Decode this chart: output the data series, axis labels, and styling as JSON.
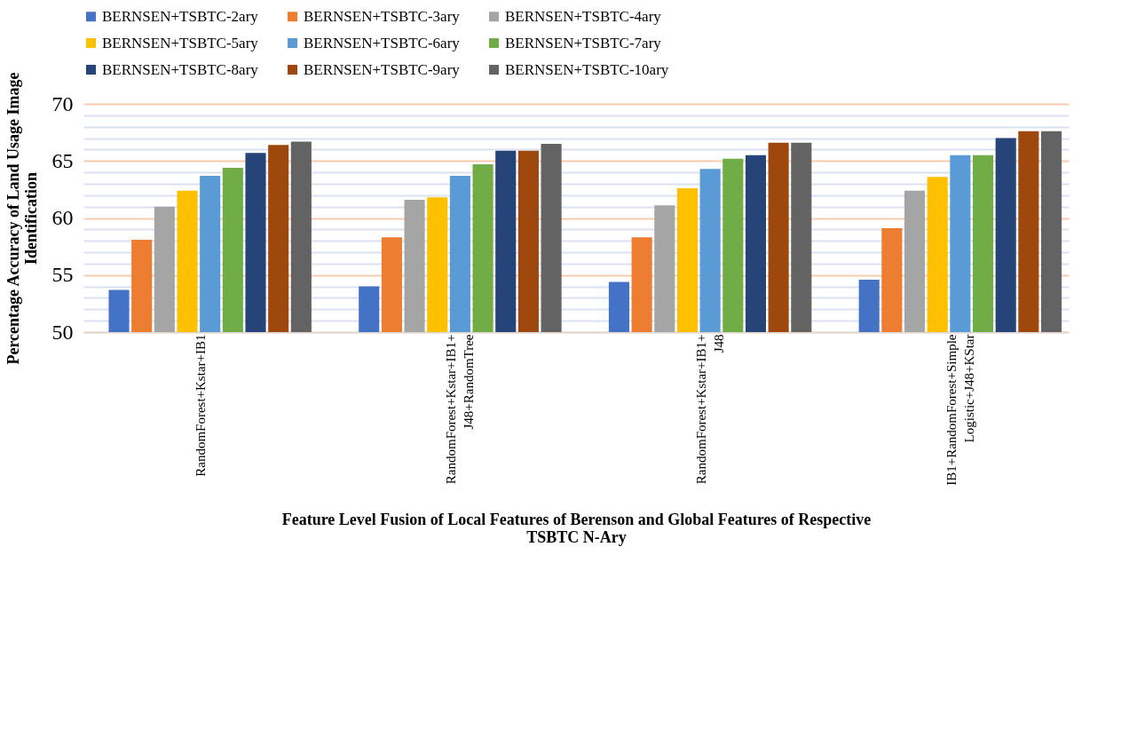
{
  "chart_data": {
    "type": "bar",
    "xlabel": "Feature Level Fusion of Local Features of Berenson and Global Features of Respective TSBTC N-Ary",
    "ylabel": "Percentage Accuracy of Land Usage Image Identification",
    "categories": [
      "RandomForest+Kstar+IB1",
      "RandomForest+Kstar+IB1+J48+RandomTree",
      "RandomForest+Kstar+IB1+J48",
      "IB1+RandomForest+Simple Logistic+J48+KStar"
    ],
    "series": [
      {
        "name": "BERNSEN+TSBTC-2ary",
        "color": "#4472c4",
        "values": [
          53.7,
          54.0,
          54.4,
          54.6
        ]
      },
      {
        "name": "BERNSEN+TSBTC-3ary",
        "color": "#ed7d31",
        "values": [
          58.1,
          58.3,
          58.3,
          59.1
        ]
      },
      {
        "name": "BERNSEN+TSBTC-4ary",
        "color": "#a5a5a5",
        "values": [
          61.0,
          61.6,
          61.1,
          62.4
        ]
      },
      {
        "name": "BERNSEN+TSBTC-5ary",
        "color": "#ffc000",
        "values": [
          62.4,
          61.8,
          62.6,
          63.6
        ]
      },
      {
        "name": "BERNSEN+TSBTC-6ary",
        "color": "#5b9bd5",
        "values": [
          63.7,
          63.7,
          64.3,
          65.5
        ]
      },
      {
        "name": "BERNSEN+TSBTC-7ary",
        "color": "#70ad47",
        "values": [
          64.4,
          64.7,
          65.2,
          65.5
        ]
      },
      {
        "name": "BERNSEN+TSBTC-8ary",
        "color": "#264478",
        "values": [
          65.7,
          65.9,
          65.5,
          67.0
        ]
      },
      {
        "name": "BERNSEN+TSBTC-9ary",
        "color": "#9e480e",
        "values": [
          66.4,
          65.9,
          66.6,
          67.6
        ]
      },
      {
        "name": "BERNSEN+TSBTC-10ary",
        "color": "#636363",
        "values": [
          66.7,
          66.5,
          66.6,
          67.6
        ]
      }
    ],
    "ylim": [
      50,
      70
    ],
    "yticks": [
      50,
      {
        "value": 51,
        "label": null
      },
      {
        "value": 52,
        "label": null
      },
      {
        "value": 53,
        "label": null
      },
      {
        "value": 54,
        "label": null
      },
      55,
      {
        "value": 56,
        "label": null
      },
      {
        "value": 57,
        "label": null
      },
      {
        "value": 58,
        "label": null
      },
      {
        "value": 59,
        "label": null
      },
      60,
      {
        "value": 61,
        "label": null
      },
      {
        "value": 62,
        "label": null
      },
      {
        "value": 63,
        "label": null
      },
      {
        "value": 64,
        "label": null
      },
      65,
      {
        "value": 66,
        "label": null
      },
      {
        "value": 67,
        "label": null
      },
      {
        "value": 68,
        "label": null
      },
      {
        "value": 69,
        "label": null
      },
      70
    ],
    "grid": "y",
    "legend": "top"
  }
}
